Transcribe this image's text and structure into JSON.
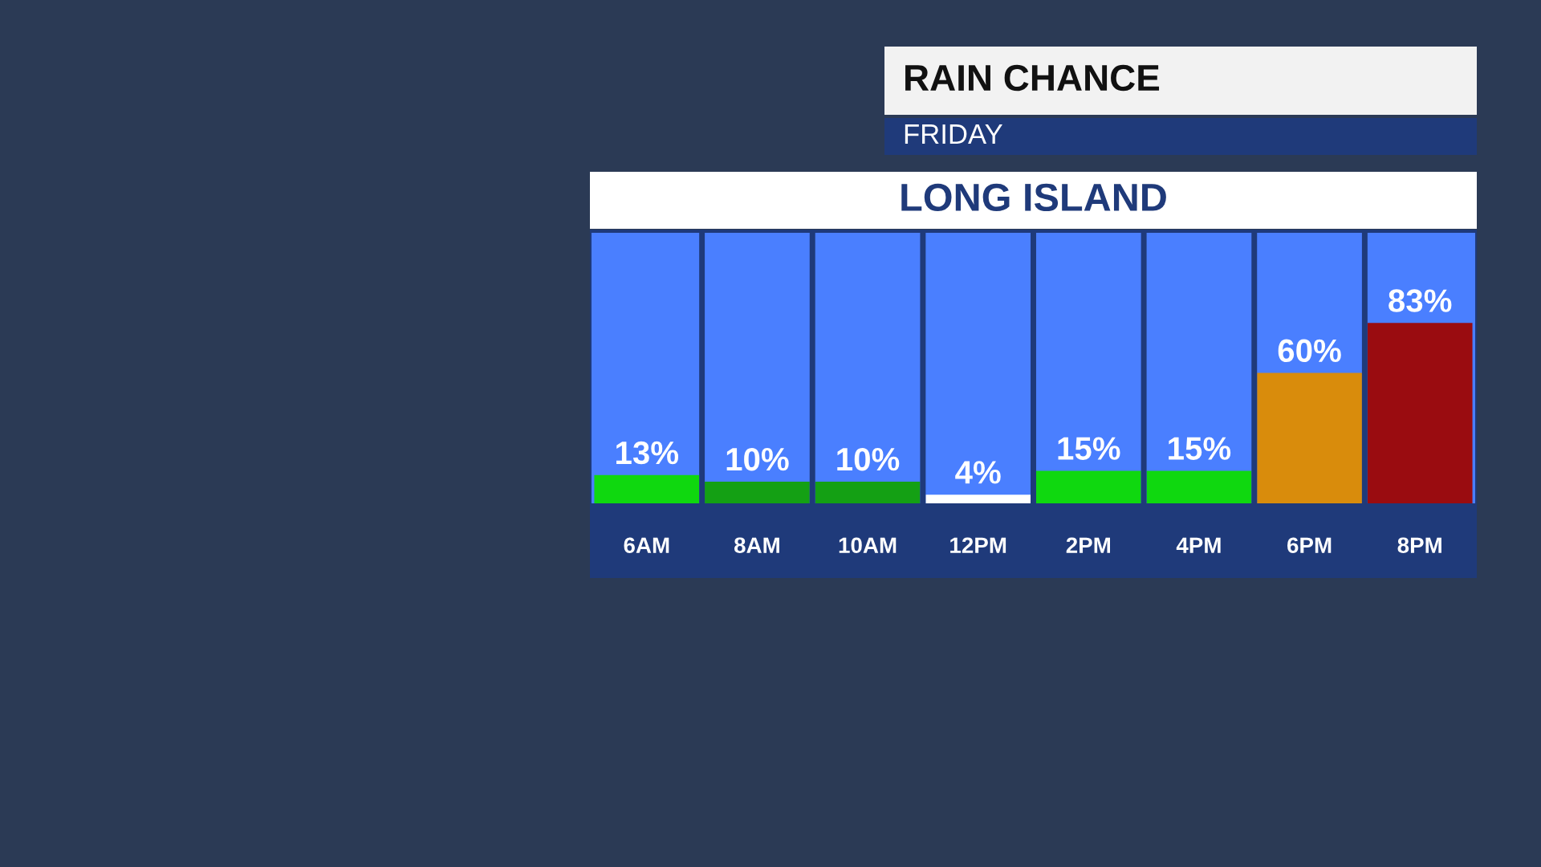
{
  "chart_data": {
    "type": "bar",
    "title": "RAIN CHANCE",
    "subtitle": "FRIDAY",
    "annotations": [
      "LONG ISLAND"
    ],
    "categories": [
      "6AM",
      "8AM",
      "10AM",
      "12PM",
      "2PM",
      "4PM",
      "6PM",
      "8PM"
    ],
    "values": [
      13,
      10,
      10,
      4,
      15,
      15,
      60,
      83
    ],
    "colors": [
      "#0fd80f",
      "#14a014",
      "#14a014",
      "#ffffff",
      "#0fd80f",
      "#0fd80f",
      "#d98c0c",
      "#9a0c10"
    ],
    "value_labels": [
      "13%",
      "10%",
      "10%",
      "4%",
      "15%",
      "15%",
      "60%",
      "83%"
    ],
    "grid": false,
    "legend": false
  }
}
